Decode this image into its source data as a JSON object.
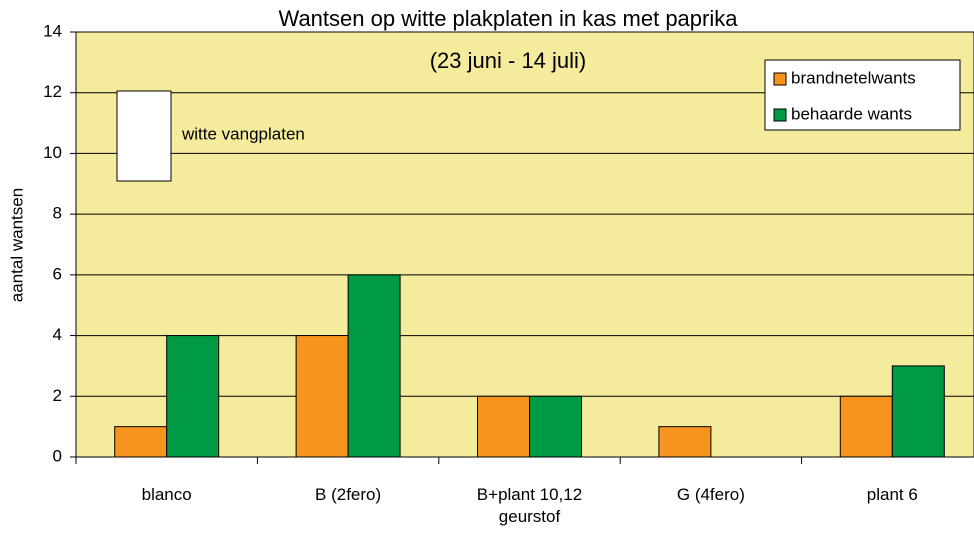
{
  "chart_data": {
    "type": "bar",
    "title": "Wantsen op witte plakplaten in kas met paprika",
    "subtitle": "(23 juni - 14 juli)",
    "ylabel": "aantal wantsen",
    "annotation": "witte vangplaten",
    "categories": [
      "blanco",
      "B (2fero)",
      "B+plant 10,12 geurstof",
      "G (4fero)",
      "plant 6"
    ],
    "series": [
      {
        "name": "brandnetelwants",
        "color": "#f7941d",
        "values": [
          1,
          4,
          2,
          1,
          2
        ]
      },
      {
        "name": "behaarde wants",
        "color": "#009a44",
        "values": [
          4,
          6,
          2,
          0,
          3
        ]
      }
    ],
    "ylim": [
      0,
      14
    ],
    "yticks": [
      0,
      2,
      4,
      6,
      8,
      10,
      12,
      14
    ],
    "grid": true,
    "background": "#f4ec9c",
    "legend": "top-right"
  }
}
